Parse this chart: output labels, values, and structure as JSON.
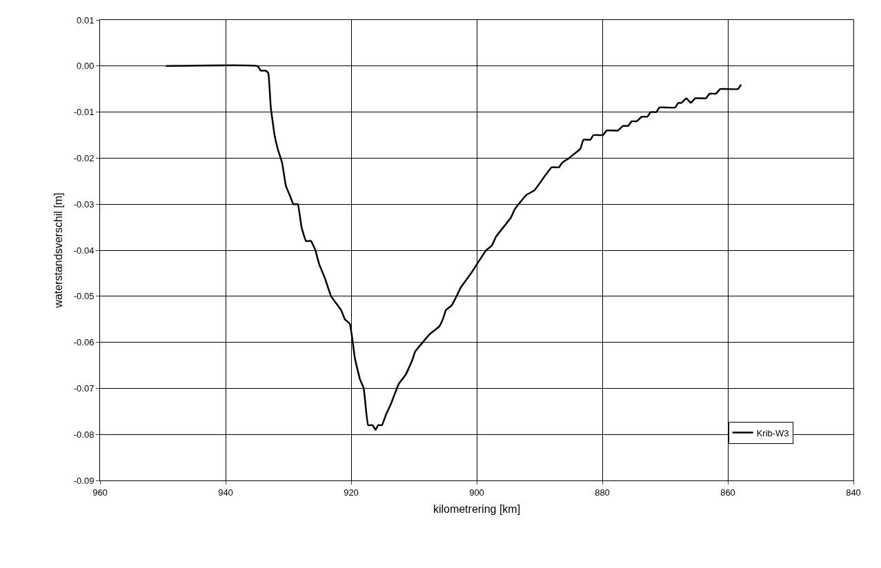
{
  "chart_data": {
    "type": "line",
    "xlabel": "kilometrering [km]",
    "ylabel": "waterstandsverschil [m]",
    "xlim": [
      960,
      840
    ],
    "xticks": [
      960,
      940,
      920,
      900,
      880,
      860,
      {
        "value": 840,
        "label": "840"
      }
    ],
    "ylim": [
      -0.09,
      0.01
    ],
    "yticks": [
      {
        "value": 0.01,
        "label": "0.01"
      },
      {
        "value": 0,
        "label": "0.00"
      },
      {
        "value": -0.01,
        "label": "-0.01"
      },
      {
        "value": -0.02,
        "label": "-0.02"
      },
      {
        "value": -0.03,
        "label": "-0.03"
      },
      {
        "value": -0.04,
        "label": "-0.04"
      },
      {
        "value": -0.05,
        "label": "-0.05"
      },
      {
        "value": -0.06,
        "label": "-0.06"
      },
      {
        "value": -0.07,
        "label": "-0.07"
      },
      {
        "value": -0.08,
        "label": "-0.08"
      },
      {
        "value": -0.09,
        "label": "-0.09"
      }
    ],
    "grid": true,
    "legend": "bottom right",
    "marker": "none",
    "line_style": "solid",
    "x": [
      949.5,
      934.9,
      934.4,
      933.6,
      933.2,
      932.8,
      932.2,
      931.7,
      931.0,
      930.4,
      929.8,
      929.2,
      928.5,
      927.9,
      927.2,
      926.4,
      925.7,
      925.1,
      924.2,
      923.2,
      921.6,
      921.0,
      920.2,
      919.4,
      918.6,
      918.0,
      917.3,
      916.6,
      916.1,
      915.7,
      915.1,
      914.4,
      913.7,
      913.0,
      912.4,
      911.3,
      910.3,
      909.8,
      908.6,
      908.0,
      907.3,
      906.0,
      905.4,
      904.9,
      904.0,
      903.4,
      902.5,
      900.9,
      898.5,
      897.6,
      896.9,
      894.6,
      893.9,
      892.1,
      890.8,
      888.1,
      886.9,
      886.4,
      885.3,
      884.4,
      883.5,
      883.0,
      881.9,
      881.4,
      879.9,
      879.3,
      877.5,
      876.7,
      875.9,
      875.3,
      874.5,
      873.7,
      872.8,
      872.3,
      871.4,
      870.9,
      868.4,
      867.9,
      867.4,
      866.6,
      865.9,
      865.2,
      863.5,
      862.9,
      861.9,
      861.2,
      858.4,
      857.9
    ],
    "series": [
      {
        "name": "Krib-W3",
        "color": "#000000",
        "values": [
          0,
          0,
          -0.001,
          -0.001,
          -0.0015,
          -0.009,
          -0.015,
          -0.018,
          -0.021,
          -0.026,
          -0.028,
          -0.03,
          -0.03,
          -0.035,
          -0.038,
          -0.038,
          -0.04,
          -0.043,
          -0.046,
          -0.05,
          -0.053,
          -0.055,
          -0.056,
          -0.0635,
          -0.068,
          -0.07,
          -0.078,
          -0.078,
          -0.079,
          -0.078,
          -0.078,
          -0.0755,
          -0.0735,
          -0.071,
          -0.069,
          -0.067,
          -0.064,
          -0.062,
          -0.06,
          -0.059,
          -0.058,
          -0.0566,
          -0.055,
          -0.053,
          -0.052,
          -0.0505,
          -0.048,
          -0.045,
          -0.04,
          -0.039,
          -0.037,
          -0.033,
          -0.031,
          -0.028,
          -0.027,
          -0.022,
          -0.022,
          -0.021,
          -0.02,
          -0.019,
          -0.018,
          -0.016,
          -0.016,
          -0.015,
          -0.015,
          -0.014,
          -0.014,
          -0.013,
          -0.013,
          -0.012,
          -0.012,
          -0.011,
          -0.011,
          -0.01,
          -0.01,
          -0.009,
          -0.009,
          -0.008,
          -0.008,
          -0.007,
          -0.008,
          -0.007,
          -0.007,
          -0.006,
          -0.006,
          -0.005,
          -0.005,
          -0.004
        ]
      }
    ]
  }
}
